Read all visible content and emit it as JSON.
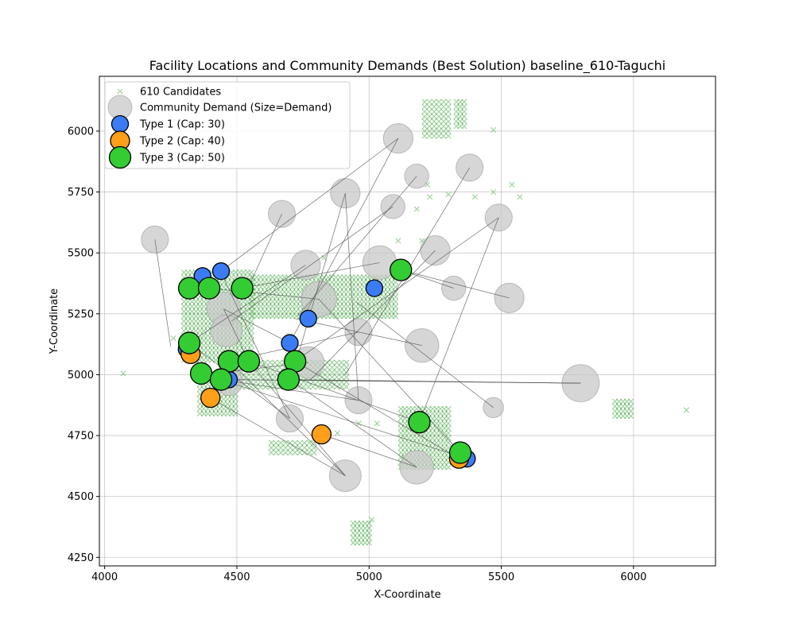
{
  "chart_data": {
    "type": "scatter",
    "title": "Facility Locations and Community Demands (Best Solution) baseline_610-Taguchi",
    "xlabel": "X-Coordinate",
    "ylabel": "Y-Coordinate",
    "xlim": [
      3980,
      6310
    ],
    "ylim": [
      4215,
      6225
    ],
    "xticks": [
      4000,
      4500,
      5000,
      5500,
      6000
    ],
    "yticks": [
      4250,
      4500,
      4750,
      5000,
      5250,
      5500,
      5750,
      6000
    ],
    "grid": true,
    "legend_position": "upper-left",
    "legend": [
      {
        "label": "610 Candidates",
        "marker": "x",
        "color": "#2ca02c"
      },
      {
        "label": "Community Demand (Size=Demand)",
        "marker": "circle",
        "color": "#c8c8c8"
      },
      {
        "label": "Type 1 (Cap: 30)",
        "marker": "circle",
        "color": "#3b7cf5"
      },
      {
        "label": "Type 2 (Cap: 40)",
        "marker": "circle",
        "color": "#ff9f1a"
      },
      {
        "label": "Type 3 (Cap: 50)",
        "marker": "circle",
        "color": "#33cc33"
      }
    ],
    "colors": {
      "candidate": "#2ca02c",
      "demand": "#c8c8c8",
      "type1": "#3b7cf5",
      "type2": "#ff9f1a",
      "type3": "#33cc33",
      "link": "#555555"
    },
    "candidate_regions": [
      {
        "x": [
          4300,
          4560
        ],
        "y": [
          5060,
          5430
        ],
        "step": [
          15,
          20
        ]
      },
      {
        "x": [
          4560,
          5110
        ],
        "y": [
          5240,
          5400
        ],
        "step": [
          15,
          20
        ]
      },
      {
        "x": [
          4360,
          4500
        ],
        "y": [
          4840,
          4960
        ],
        "step": [
          15,
          20
        ]
      },
      {
        "x": [
          4500,
          4920
        ],
        "y": [
          4950,
          5050
        ],
        "step": [
          18,
          20
        ]
      },
      {
        "x": [
          5120,
          5300
        ],
        "y": [
          4620,
          4860
        ],
        "step": [
          15,
          20
        ]
      },
      {
        "x": [
          5210,
          5310
        ],
        "y": [
          5980,
          6120
        ],
        "step": [
          18,
          20
        ]
      },
      {
        "x": [
          5330,
          5370
        ],
        "y": [
          6020,
          6120
        ],
        "step": [
          15,
          20
        ]
      },
      {
        "x": [
          4940,
          5000
        ],
        "y": [
          4310,
          4400
        ],
        "step": [
          15,
          20
        ]
      },
      {
        "x": [
          5930,
          6000
        ],
        "y": [
          4830,
          4900
        ],
        "step": [
          15,
          20
        ]
      },
      {
        "x": [
          4630,
          4800
        ],
        "y": [
          4680,
          4720
        ],
        "step": [
          18,
          20
        ]
      }
    ],
    "candidates_isolated": [
      [
        4070,
        5005
      ],
      [
        6200,
        4855
      ],
      [
        5470,
        6005
      ],
      [
        5470,
        5750
      ],
      [
        5570,
        5730
      ],
      [
        5540,
        5780
      ],
      [
        5400,
        5730
      ],
      [
        5300,
        5740
      ],
      [
        5220,
        5780
      ],
      [
        5180,
        5680
      ],
      [
        5230,
        5730
      ],
      [
        5200,
        5550
      ],
      [
        5110,
        5550
      ],
      [
        5030,
        4800
      ],
      [
        4960,
        4800
      ],
      [
        4880,
        4760
      ],
      [
        4830,
        5480
      ],
      [
        4700,
        5160
      ],
      [
        4260,
        5150
      ],
      [
        5010,
        4405
      ]
    ],
    "demands": [
      {
        "x": 4190,
        "y": 5555,
        "demand": 3
      },
      {
        "x": 4670,
        "y": 5660,
        "demand": 3
      },
      {
        "x": 4910,
        "y": 5745,
        "demand": 4
      },
      {
        "x": 5110,
        "y": 5970,
        "demand": 4
      },
      {
        "x": 5180,
        "y": 5815,
        "demand": 2
      },
      {
        "x": 5090,
        "y": 5690,
        "demand": 2
      },
      {
        "x": 5380,
        "y": 5850,
        "demand": 3
      },
      {
        "x": 5490,
        "y": 5645,
        "demand": 3
      },
      {
        "x": 5250,
        "y": 5510,
        "demand": 4
      },
      {
        "x": 5040,
        "y": 5460,
        "demand": 6
      },
      {
        "x": 4760,
        "y": 5450,
        "demand": 4
      },
      {
        "x": 4810,
        "y": 5310,
        "demand": 7
      },
      {
        "x": 4450,
        "y": 5270,
        "demand": 6
      },
      {
        "x": 4460,
        "y": 5180,
        "demand": 5
      },
      {
        "x": 4960,
        "y": 5175,
        "demand": 3
      },
      {
        "x": 5320,
        "y": 5355,
        "demand": 2
      },
      {
        "x": 5530,
        "y": 5315,
        "demand": 4
      },
      {
        "x": 5200,
        "y": 5120,
        "demand": 6
      },
      {
        "x": 4770,
        "y": 5050,
        "demand": 5
      },
      {
        "x": 4470,
        "y": 4970,
        "demand": 3
      },
      {
        "x": 4960,
        "y": 4895,
        "demand": 3
      },
      {
        "x": 4700,
        "y": 4820,
        "demand": 3
      },
      {
        "x": 5470,
        "y": 4865,
        "demand": 1
      },
      {
        "x": 4910,
        "y": 4585,
        "demand": 5
      },
      {
        "x": 5180,
        "y": 4620,
        "demand": 6
      },
      {
        "x": 5800,
        "y": 4965,
        "demand": 8
      }
    ],
    "facilities": [
      {
        "x": 4440,
        "y": 5425,
        "type": 1
      },
      {
        "x": 4370,
        "y": 5405,
        "type": 1
      },
      {
        "x": 5020,
        "y": 5355,
        "type": 1
      },
      {
        "x": 4770,
        "y": 5230,
        "type": 1
      },
      {
        "x": 4700,
        "y": 5130,
        "type": 1
      },
      {
        "x": 4310,
        "y": 5105,
        "type": 1
      },
      {
        "x": 4470,
        "y": 4980,
        "type": 1
      },
      {
        "x": 5370,
        "y": 4655,
        "type": 1
      },
      {
        "x": 4325,
        "y": 5085,
        "type": 2
      },
      {
        "x": 4400,
        "y": 4905,
        "type": 2
      },
      {
        "x": 4820,
        "y": 4755,
        "type": 2
      },
      {
        "x": 5340,
        "y": 4655,
        "type": 2
      },
      {
        "x": 4320,
        "y": 5355,
        "type": 3
      },
      {
        "x": 4395,
        "y": 5355,
        "type": 3
      },
      {
        "x": 4520,
        "y": 5355,
        "type": 3
      },
      {
        "x": 5120,
        "y": 5430,
        "type": 3
      },
      {
        "x": 4320,
        "y": 5130,
        "type": 3
      },
      {
        "x": 4470,
        "y": 5055,
        "type": 3
      },
      {
        "x": 4545,
        "y": 5055,
        "type": 3
      },
      {
        "x": 4720,
        "y": 5055,
        "type": 3
      },
      {
        "x": 4365,
        "y": 5005,
        "type": 3
      },
      {
        "x": 4440,
        "y": 4980,
        "type": 3
      },
      {
        "x": 4695,
        "y": 4980,
        "type": 3
      },
      {
        "x": 5190,
        "y": 4805,
        "type": 3
      },
      {
        "x": 5345,
        "y": 4680,
        "type": 3
      }
    ],
    "links": [
      [
        [
          4190,
          5555
        ],
        [
          4250,
          5115
        ]
      ],
      [
        [
          4670,
          5660
        ],
        [
          4540,
          5350
        ]
      ],
      [
        [
          4910,
          5745
        ],
        [
          4725,
          5055
        ]
      ],
      [
        [
          4910,
          5745
        ],
        [
          4960,
          4895
        ]
      ],
      [
        [
          5110,
          5970
        ],
        [
          4440,
          5425
        ]
      ],
      [
        [
          5110,
          5970
        ],
        [
          4700,
          5130
        ]
      ],
      [
        [
          5180,
          5815
        ],
        [
          4730,
          5240
        ]
      ],
      [
        [
          5090,
          5690
        ],
        [
          4480,
          5220
        ]
      ],
      [
        [
          5380,
          5850
        ],
        [
          4910,
          5000
        ]
      ],
      [
        [
          5490,
          5645
        ],
        [
          5190,
          4805
        ]
      ],
      [
        [
          5490,
          5645
        ],
        [
          4720,
          5055
        ]
      ],
      [
        [
          5250,
          5510
        ],
        [
          4780,
          4980
        ]
      ],
      [
        [
          5040,
          5460
        ],
        [
          4520,
          5355
        ]
      ],
      [
        [
          4760,
          5450
        ],
        [
          4320,
          5130
        ]
      ],
      [
        [
          4810,
          5310
        ],
        [
          4395,
          5355
        ]
      ],
      [
        [
          4810,
          5310
        ],
        [
          5345,
          4680
        ]
      ],
      [
        [
          4450,
          5270
        ],
        [
          4700,
          5130
        ]
      ],
      [
        [
          4450,
          5270
        ],
        [
          4545,
          5055
        ]
      ],
      [
        [
          5320,
          5355
        ],
        [
          5120,
          5430
        ]
      ],
      [
        [
          5530,
          5315
        ],
        [
          5120,
          5430
        ]
      ],
      [
        [
          5200,
          5120
        ],
        [
          4720,
          5230
        ]
      ],
      [
        [
          4960,
          5175
        ],
        [
          4470,
          5055
        ]
      ],
      [
        [
          4770,
          5050
        ],
        [
          4370,
          5000
        ]
      ],
      [
        [
          4960,
          4895
        ],
        [
          4440,
          4980
        ]
      ],
      [
        [
          4700,
          4820
        ],
        [
          4440,
          5420
        ]
      ],
      [
        [
          5470,
          4865
        ],
        [
          4950,
          5300
        ]
      ],
      [
        [
          4910,
          4585
        ],
        [
          4470,
          5055
        ]
      ],
      [
        [
          4910,
          4585
        ],
        [
          4545,
          5055
        ]
      ],
      [
        [
          4910,
          4585
        ],
        [
          4400,
          4905
        ]
      ],
      [
        [
          5180,
          4620
        ],
        [
          4820,
          4755
        ]
      ],
      [
        [
          5180,
          4620
        ],
        [
          4700,
          4980
        ]
      ],
      [
        [
          5800,
          4965
        ],
        [
          4470,
          4980
        ]
      ],
      [
        [
          5800,
          4965
        ],
        [
          4695,
          4980
        ]
      ],
      [
        [
          5800,
          4965
        ],
        [
          4440,
          4980
        ]
      ],
      [
        [
          5340,
          4655
        ],
        [
          4720,
          5055
        ]
      ],
      [
        [
          5370,
          4655
        ],
        [
          4365,
          5005
        ]
      ],
      [
        [
          5190,
          4805
        ],
        [
          4545,
          5055
        ]
      ],
      [
        [
          4700,
          4820
        ],
        [
          4320,
          5130
        ]
      ]
    ]
  }
}
